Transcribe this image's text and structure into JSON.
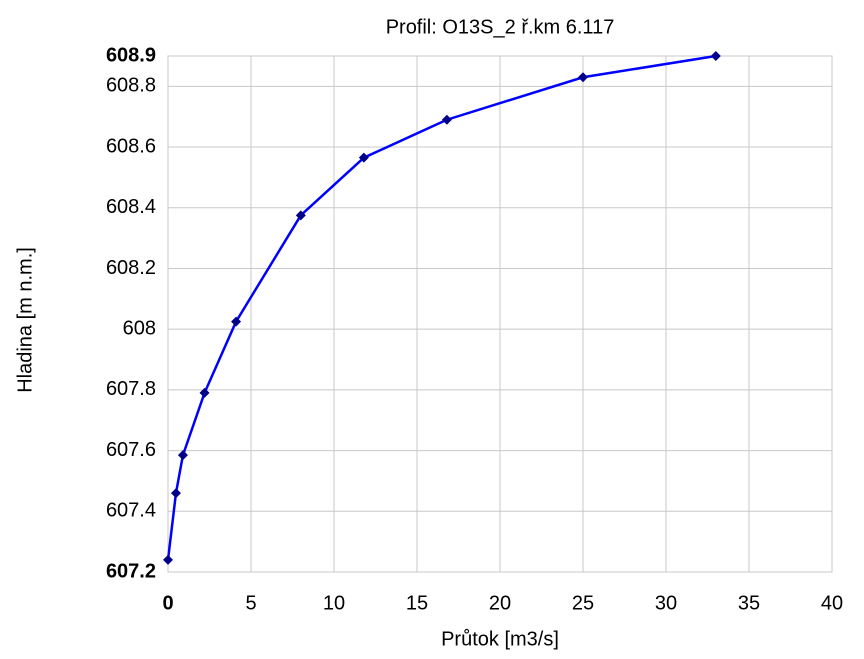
{
  "chart_data": {
    "type": "line",
    "title": "Profil: O13S_2  ř.km 6.117",
    "x_label": "Průtok [m3/s]",
    "y_label": "Hladina [m n.m.]",
    "x": [
      0,
      0.48,
      0.9,
      2.2,
      4.1,
      8.0,
      11.8,
      16.8,
      25.0,
      33.0
    ],
    "series": [
      {
        "name": "Hladina",
        "color": "#0000ff",
        "marker_color": "#00008b",
        "values": [
          607.24,
          607.46,
          607.585,
          607.79,
          608.025,
          608.375,
          608.565,
          608.69,
          608.83,
          608.9
        ]
      }
    ],
    "xlim": [
      0,
      40
    ],
    "xticks": [
      0,
      5,
      10,
      15,
      20,
      25,
      30,
      35,
      40
    ],
    "ylim": [
      607.2,
      608.9
    ],
    "yticks": [
      608.9,
      608.8,
      608.6,
      608.4,
      608.2,
      608,
      607.8,
      607.6,
      607.4,
      607.2
    ],
    "grid": true
  }
}
